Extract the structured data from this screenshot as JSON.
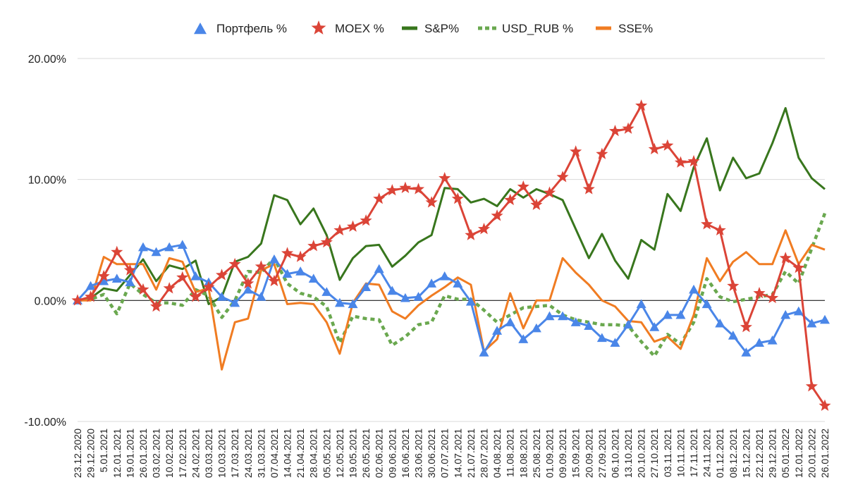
{
  "chart_data": {
    "type": "line",
    "title": "",
    "xlabel": "",
    "ylabel": "",
    "ylim": [
      -10,
      20
    ],
    "yticks": [
      "20.00%",
      "10.00%",
      "0.00%",
      "-10.00%"
    ],
    "grid": "horizontal",
    "legend_position": "top",
    "x": [
      "23.12.2020",
      "29.12.2020",
      "5.01.2021",
      "12.01.2021",
      "19.01.2021",
      "26.01.2021",
      "03.02.2021",
      "10.02.2021",
      "17.02.2021",
      "24.02.2021",
      "03.03.2021",
      "10.03.2021",
      "17.03.2021",
      "24.03.2021",
      "31.03.2021",
      "07.04.2021",
      "14.04.2021",
      "21.04.2021",
      "28.04.2021",
      "05.05.2021",
      "12.05.2021",
      "19.05.2021",
      "26.05.2021",
      "02.06.2021",
      "09.06.2021",
      "16.06.2021",
      "23.06.2021",
      "30.06.2021",
      "07.07.2021",
      "14.07.2021",
      "21.07.2021",
      "28.07.2021",
      "04.08.2021",
      "11.08.2021",
      "18.08.2021",
      "25.08.2021",
      "01.09.2021",
      "09.09.2021",
      "15.09.2021",
      "20.09.2021",
      "27.09.2021",
      "06.10.2021",
      "13.10.2021",
      "20.10.2021",
      "27.10.2021",
      "03.11.2021",
      "10.11.2021",
      "17.11.2021",
      "24.11.2021",
      "01.12.2021",
      "08.12.2021",
      "15.12.2021",
      "22.12.2021",
      "29.12.2021",
      "05.01.2022",
      "12.01.2022",
      "20.01.2022",
      "26.01.2022"
    ],
    "series": [
      {
        "name": "Портфель %",
        "color": "#4a86e8",
        "style": "solid-triangle",
        "x": [
          0,
          1,
          2,
          3,
          4,
          5,
          6,
          7,
          8,
          9,
          10,
          11,
          12,
          13,
          14,
          15,
          16,
          17,
          18,
          19,
          20,
          21,
          22,
          23,
          24,
          25,
          26,
          27,
          28,
          29,
          30,
          31,
          32,
          33,
          34,
          35,
          36,
          37,
          38,
          39,
          40,
          41,
          42,
          43,
          44,
          45,
          46,
          47,
          48,
          49,
          50,
          51,
          52,
          53,
          54,
          55,
          56,
          57
        ],
        "values": [
          0,
          1.2,
          1.6,
          1.8,
          1.5,
          4.4,
          4.0,
          4.4,
          4.6,
          2.0,
          1.5,
          0.3,
          -0.2,
          0.9,
          0.3,
          3.4,
          2.2,
          2.4,
          1.8,
          0.7,
          -0.2,
          -0.3,
          1.1,
          2.6,
          0.8,
          0.2,
          0.3,
          1.4,
          2.0,
          1.4,
          -0.1,
          -4.3,
          -2.5,
          -1.8,
          -3.2,
          -2.3,
          -1.3,
          -1.3,
          -1.8,
          -2.1,
          -3.1,
          -3.5,
          -2.0,
          -0.3,
          -2.2,
          -1.2,
          -1.2,
          0.9,
          -0.3,
          -1.9,
          -2.9,
          -4.3,
          -3.5,
          -3.3,
          -1.2,
          -0.9,
          -1.9,
          -1.6
        ]
      },
      {
        "name": "MOEX %",
        "color": "#db4437",
        "style": "solid-star",
        "x": [
          0,
          1,
          2,
          3,
          4,
          5,
          6,
          7,
          8,
          9,
          10,
          11,
          12,
          13,
          14,
          15,
          16,
          17,
          18,
          19,
          20,
          21,
          22,
          23,
          24,
          25,
          26,
          27,
          28,
          29,
          30,
          31,
          32,
          33,
          34,
          35,
          36,
          37,
          38,
          39,
          40,
          41,
          42,
          43,
          44,
          45,
          46,
          47,
          48,
          49,
          50,
          51,
          52,
          53,
          54,
          55,
          56,
          57
        ],
        "values": [
          0,
          0.3,
          2.0,
          4.0,
          2.5,
          0.9,
          -0.5,
          1.0,
          1.9,
          0.3,
          1.1,
          2.1,
          3.0,
          1.4,
          2.8,
          1.6,
          3.9,
          3.6,
          4.5,
          4.8,
          5.8,
          6.1,
          6.6,
          8.4,
          9.1,
          9.3,
          9.2,
          8.1,
          10.1,
          8.4,
          5.4,
          5.9,
          7.0,
          8.3,
          9.4,
          7.9,
          8.9,
          10.2,
          12.3,
          9.2,
          12.1,
          14.0,
          14.2,
          16.1,
          12.5,
          12.8,
          11.4,
          11.5,
          6.3,
          5.8,
          1.2,
          -2.2,
          0.6,
          0.2,
          3.5,
          2.7,
          -7.1,
          -8.7
        ]
      },
      {
        "name": "S&P%",
        "color": "#38761d",
        "style": "solid",
        "x": [
          0,
          1,
          2,
          3,
          4,
          5,
          6,
          7,
          8,
          9,
          10,
          11,
          12,
          13,
          14,
          15,
          16,
          17,
          18,
          19,
          20,
          21,
          22,
          23,
          24,
          25,
          26,
          27,
          28,
          29,
          30,
          31,
          32,
          33,
          34,
          35,
          36,
          37,
          38,
          39,
          40,
          41,
          42,
          43,
          44,
          45,
          46,
          47,
          48,
          49,
          50,
          51,
          52,
          53,
          54,
          55,
          56,
          57
        ],
        "values": [
          0,
          0.2,
          1.0,
          0.8,
          2.1,
          3.4,
          1.6,
          2.9,
          2.6,
          3.3,
          -0.3,
          0.3,
          3.2,
          3.6,
          4.7,
          8.7,
          8.3,
          6.3,
          7.6,
          5.4,
          1.7,
          3.5,
          4.5,
          4.6,
          2.8,
          3.7,
          4.8,
          5.4,
          9.3,
          9.2,
          8.1,
          8.4,
          7.8,
          9.2,
          8.5,
          9.2,
          8.8,
          8.3,
          5.9,
          3.5,
          5.5,
          3.3,
          1.8,
          5.0,
          4.2,
          8.8,
          7.4,
          11.0,
          13.4,
          9.1,
          11.8,
          10.1,
          10.5,
          13.0,
          15.9,
          11.8,
          10.1,
          9.2
        ]
      },
      {
        "name": "USD_RUB %",
        "color": "#6aa84f",
        "style": "dotted",
        "x": [
          0,
          1,
          2,
          3,
          4,
          5,
          6,
          7,
          8,
          9,
          10,
          11,
          12,
          13,
          14,
          15,
          16,
          17,
          18,
          19,
          20,
          21,
          22,
          23,
          24,
          25,
          26,
          27,
          28,
          29,
          30,
          31,
          32,
          33,
          34,
          35,
          36,
          37,
          38,
          39,
          40,
          41,
          42,
          43,
          44,
          45,
          46,
          47,
          48,
          49,
          50,
          51,
          52,
          53,
          54,
          55,
          56,
          57
        ],
        "values": [
          0,
          0.1,
          0.5,
          -1.1,
          1.4,
          0.5,
          -0.2,
          -0.2,
          -0.4,
          0.9,
          0.4,
          -1.4,
          0,
          2.4,
          2.3,
          3.5,
          1.4,
          0.6,
          0.3,
          -0.5,
          -3.5,
          -1.3,
          -1.5,
          -1.6,
          -3.7,
          -3.0,
          -2.0,
          -1.8,
          0.4,
          0.1,
          0.1,
          -0.8,
          -1.8,
          -1.2,
          -0.6,
          -0.5,
          -0.4,
          -1.2,
          -1.6,
          -1.8,
          -2.0,
          -2.0,
          -2.1,
          -3.4,
          -4.6,
          -2.8,
          -3.6,
          -1.8,
          1.8,
          0.3,
          -0.1,
          0.1,
          0.3,
          0.5,
          2.4,
          1.4,
          4.3,
          7.2
        ]
      },
      {
        "name": "SSE%",
        "color": "#f07c22",
        "style": "solid",
        "x": [
          0,
          1,
          2,
          3,
          4,
          5,
          6,
          7,
          8,
          9,
          10,
          11,
          12,
          13,
          14,
          15,
          16,
          17,
          18,
          19,
          20,
          21,
          22,
          23,
          24,
          25,
          26,
          27,
          28,
          29,
          30,
          31,
          32,
          33,
          34,
          35,
          36,
          37,
          38,
          39,
          40,
          41,
          42,
          43,
          44,
          45,
          46,
          47,
          48,
          49,
          50,
          51,
          52,
          53,
          54,
          55,
          56,
          57
        ],
        "values": [
          0,
          0,
          3.6,
          3.0,
          3.0,
          3.0,
          0.9,
          3.5,
          3.2,
          0.7,
          1.0,
          -5.7,
          -1.8,
          -1.5,
          2.5,
          3.0,
          -0.3,
          -0.2,
          -0.3,
          -1.8,
          -4.4,
          -0.2,
          1.4,
          1.3,
          -0.9,
          -1.5,
          -0.4,
          0.4,
          1.1,
          1.9,
          1.3,
          -4.2,
          -3.2,
          0.6,
          -2.3,
          0,
          0,
          3.5,
          2.3,
          1.3,
          0,
          -0.5,
          -1.7,
          -1.8,
          -3.4,
          -3.0,
          -4.0,
          -1.2,
          3.5,
          1.6,
          3.2,
          4.0,
          3.0,
          3.0,
          5.8,
          3.0,
          4.6,
          4.2
        ]
      }
    ]
  }
}
